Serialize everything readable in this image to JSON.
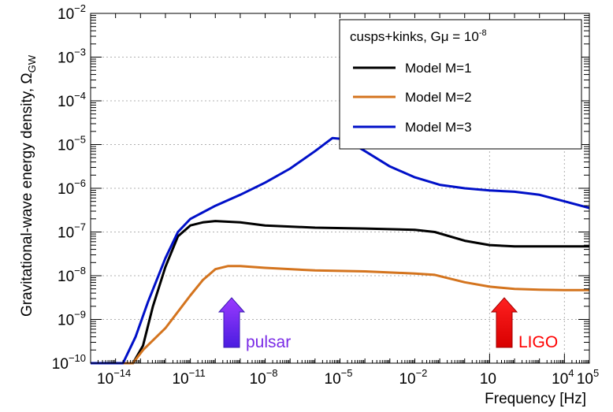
{
  "chart_data": {
    "type": "line",
    "xlabel": "Frequency [Hz]",
    "ylabel": "Gravitational-wave energy density, Ω",
    "ylabel_sub": "GW",
    "xscale": "log",
    "yscale": "log",
    "xlim_exp": [
      -15,
      5
    ],
    "ylim_exp": [
      -10,
      -2
    ],
    "x_ticks": [
      {
        "exp": -14,
        "base": "10",
        "sup": "−14"
      },
      {
        "exp": -11,
        "base": "10",
        "sup": "−11"
      },
      {
        "exp": -8,
        "base": "10",
        "sup": "−8"
      },
      {
        "exp": -5,
        "base": "10",
        "sup": "−5"
      },
      {
        "exp": -2,
        "base": "10",
        "sup": "−2"
      },
      {
        "exp": 1,
        "base": "10",
        "sup": ""
      },
      {
        "exp": 4,
        "base": "10",
        "sup": "4"
      },
      {
        "exp": 5,
        "base": "10",
        "sup": "5"
      }
    ],
    "y_ticks": [
      {
        "exp": -10,
        "base": "10",
        "sup": "−10"
      },
      {
        "exp": -9,
        "base": "10",
        "sup": "−9"
      },
      {
        "exp": -8,
        "base": "10",
        "sup": "−8"
      },
      {
        "exp": -7,
        "base": "10",
        "sup": "−7"
      },
      {
        "exp": -6,
        "base": "10",
        "sup": "−6"
      },
      {
        "exp": -5,
        "base": "10",
        "sup": "−5"
      },
      {
        "exp": -4,
        "base": "10",
        "sup": "−4"
      },
      {
        "exp": -3,
        "base": "10",
        "sup": "−3"
      },
      {
        "exp": -2,
        "base": "10",
        "sup": "−2"
      }
    ],
    "grid": true,
    "legend": {
      "position": "top-right",
      "header_main": "cusps+kinks, Gμ = 10",
      "header_sup": "-8"
    },
    "series": [
      {
        "name": "Model M=1",
        "color": "#000000",
        "points": [
          [
            -15,
            -10
          ],
          [
            -13.3,
            -10
          ],
          [
            -12.9,
            -9.6
          ],
          [
            -12.5,
            -8.7
          ],
          [
            -12,
            -7.8
          ],
          [
            -11.5,
            -7.1
          ],
          [
            -11,
            -6.85
          ],
          [
            -10.5,
            -6.78
          ],
          [
            -10,
            -6.75
          ],
          [
            -9,
            -6.78
          ],
          [
            -8,
            -6.85
          ],
          [
            -6,
            -6.9
          ],
          [
            -4,
            -6.92
          ],
          [
            -2,
            -6.95
          ],
          [
            -1.2,
            -7
          ],
          [
            0,
            -7.2
          ],
          [
            1,
            -7.3
          ],
          [
            2,
            -7.33
          ],
          [
            3,
            -7.33
          ],
          [
            4,
            -7.33
          ],
          [
            5,
            -7.33
          ]
        ]
      },
      {
        "name": "Model M=2",
        "color": "#d4741e",
        "points": [
          [
            -15,
            -10
          ],
          [
            -13.3,
            -10
          ],
          [
            -12.9,
            -9.7
          ],
          [
            -12,
            -9.2
          ],
          [
            -11,
            -8.45
          ],
          [
            -10.5,
            -8.1
          ],
          [
            -10,
            -7.85
          ],
          [
            -9.5,
            -7.78
          ],
          [
            -9,
            -7.78
          ],
          [
            -8,
            -7.82
          ],
          [
            -6,
            -7.88
          ],
          [
            -4,
            -7.9
          ],
          [
            -2,
            -7.95
          ],
          [
            -1.2,
            -7.98
          ],
          [
            0,
            -8.15
          ],
          [
            1,
            -8.25
          ],
          [
            2,
            -8.3
          ],
          [
            3,
            -8.32
          ],
          [
            4,
            -8.33
          ],
          [
            5,
            -8.33
          ]
        ]
      },
      {
        "name": "Model M=3",
        "color": "#0010c8",
        "points": [
          [
            -15,
            -10
          ],
          [
            -13.7,
            -10
          ],
          [
            -13.2,
            -9.4
          ],
          [
            -12.7,
            -8.6
          ],
          [
            -12,
            -7.6
          ],
          [
            -11.5,
            -7
          ],
          [
            -11,
            -6.7
          ],
          [
            -10,
            -6.4
          ],
          [
            -9,
            -6.15
          ],
          [
            -8,
            -5.87
          ],
          [
            -7,
            -5.55
          ],
          [
            -6,
            -5.15
          ],
          [
            -5.3,
            -4.85
          ],
          [
            -4.8,
            -4.88
          ],
          [
            -4,
            -5.15
          ],
          [
            -3,
            -5.5
          ],
          [
            -2,
            -5.75
          ],
          [
            -1,
            -5.92
          ],
          [
            0,
            -6
          ],
          [
            1,
            -6.05
          ],
          [
            2,
            -6.08
          ],
          [
            3,
            -6.15
          ],
          [
            4,
            -6.3
          ],
          [
            5,
            -6.45
          ]
        ]
      }
    ],
    "annotations": [
      {
        "text": "pulsar",
        "color": "#7a2ae6",
        "x_exp": -10,
        "y_exp": -9.7
      },
      {
        "text": "LIGO",
        "color": "#ff0000",
        "x_exp": 1.5,
        "y_exp": -9.7
      }
    ]
  }
}
